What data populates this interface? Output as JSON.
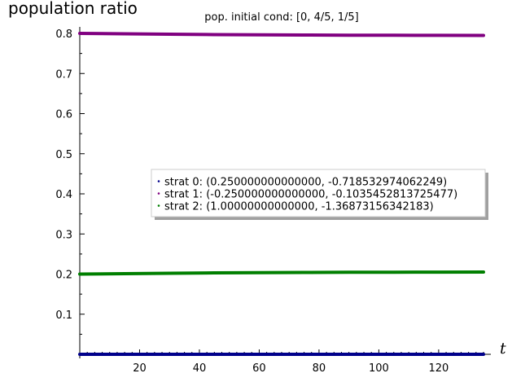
{
  "chart_data": {
    "type": "line",
    "title": "pop. initial cond: [0, 4/5, 1/5]",
    "ylabel": "population ratio",
    "xlabel": "t",
    "xlim": [
      0,
      135
    ],
    "ylim": [
      0,
      0.8
    ],
    "x_ticks": [
      20,
      40,
      60,
      80,
      100,
      120
    ],
    "y_ticks": [
      0.1,
      0.2,
      0.3,
      0.4,
      0.5,
      0.6,
      0.7,
      0.8
    ],
    "grid": false,
    "legend_position": "center-right",
    "x": [
      0,
      15,
      30,
      45,
      60,
      75,
      90,
      105,
      120,
      135
    ],
    "series": [
      {
        "name": "strat 0: (0.250000000000000, -0.718532974062249)",
        "color": "#00008b",
        "values": [
          0,
          0,
          0,
          0,
          0,
          0,
          0,
          0,
          0,
          0
        ]
      },
      {
        "name": "strat 1: (-0.250000000000000, -0.1035452813725477)",
        "color": "#800080",
        "values": [
          0.8,
          0.799,
          0.798,
          0.797,
          0.7965,
          0.796,
          0.7955,
          0.7953,
          0.7951,
          0.795
        ]
      },
      {
        "name": "strat 2: (1.00000000000000, -1.36873156342183)",
        "color": "#007f00",
        "values": [
          0.2,
          0.201,
          0.202,
          0.203,
          0.2035,
          0.204,
          0.2045,
          0.2047,
          0.2049,
          0.205
        ]
      }
    ]
  }
}
